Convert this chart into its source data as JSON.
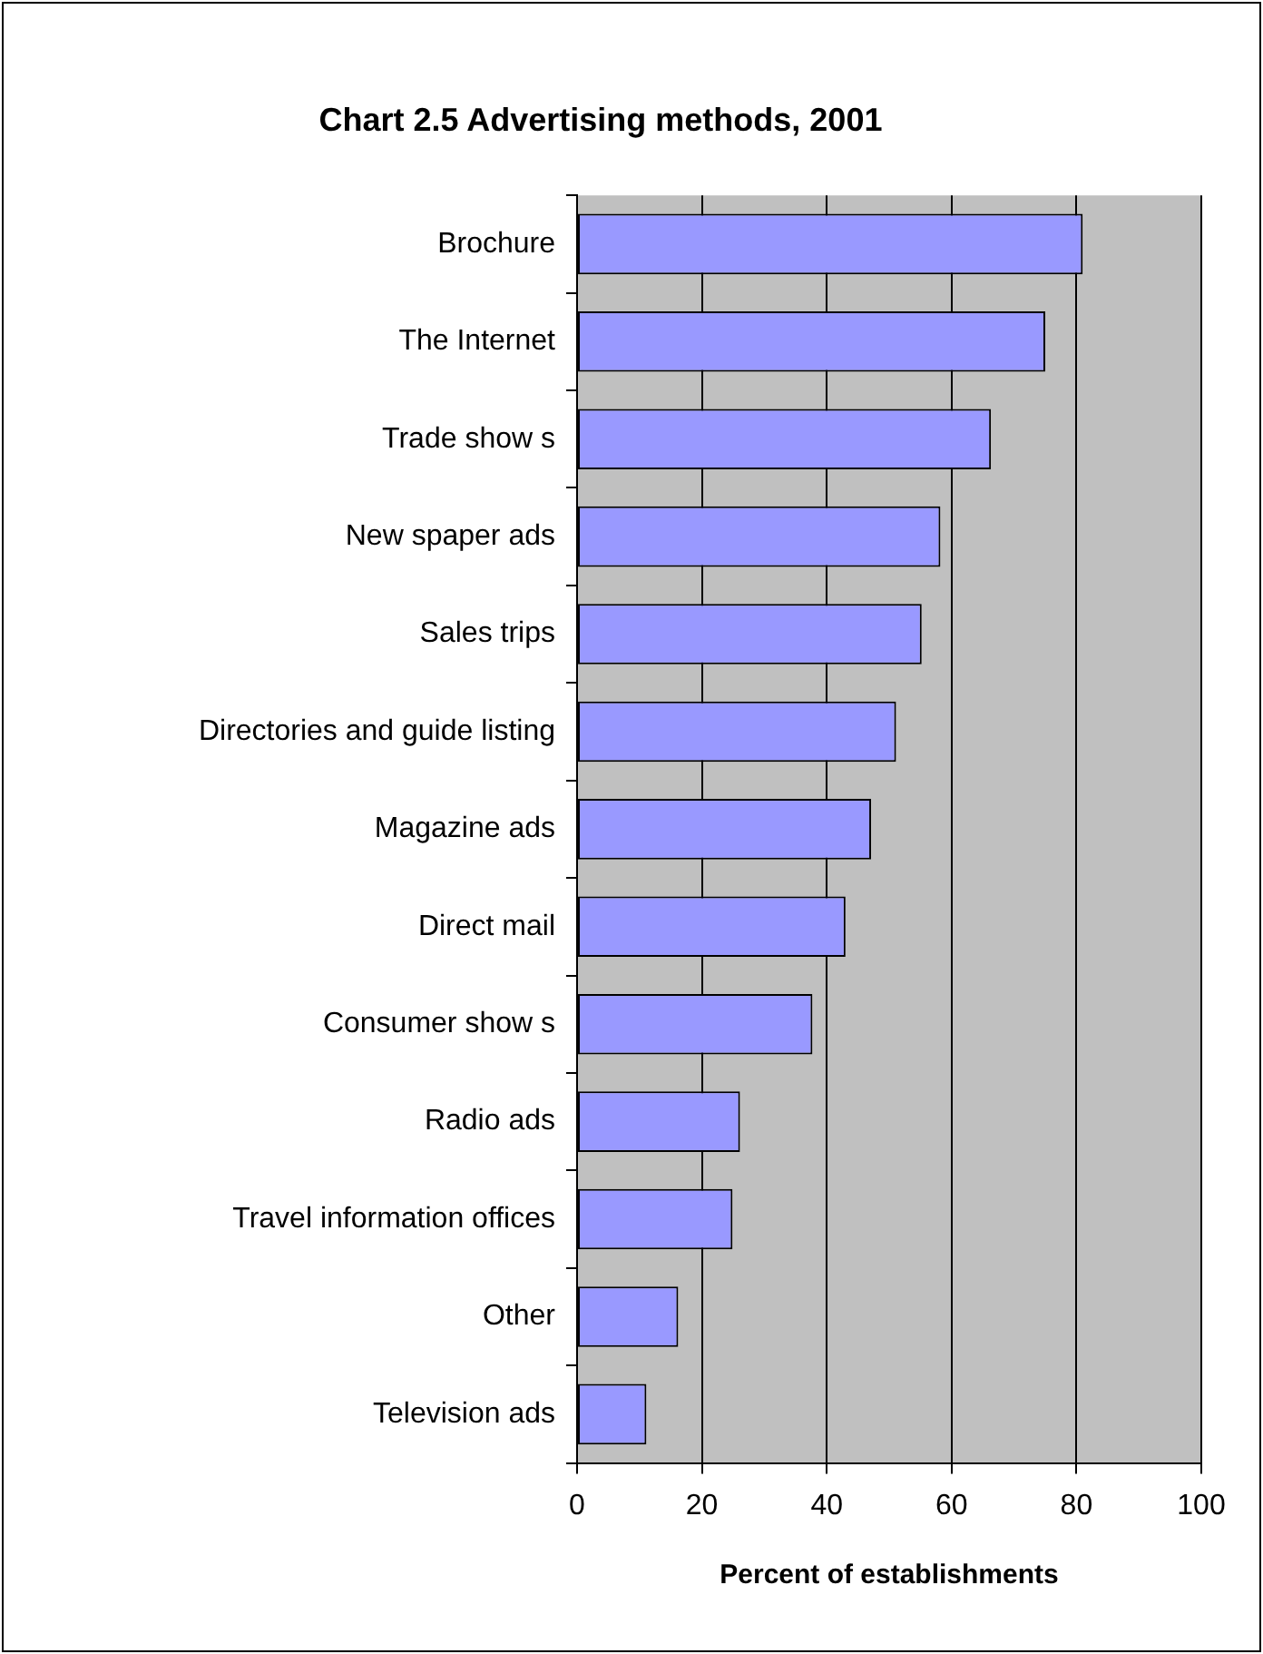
{
  "chart_data": {
    "type": "bar",
    "orientation": "horizontal",
    "title": "Chart 2.5 Advertising methods, 2001",
    "xlabel": "Percent of establishments",
    "categories": [
      "Brochure",
      "The Internet",
      "Trade show s",
      "New spaper ads",
      "Sales trips",
      "Directories and guide listing",
      "Magazine ads",
      "Direct mail",
      "Consumer show s",
      "Radio ads",
      "Travel information offices",
      "Other",
      "Television ads"
    ],
    "values": [
      81,
      75.0,
      66.3,
      58.2,
      55.2,
      51.1,
      47.1,
      43.0,
      37.7,
      26.1,
      24.9,
      16.2,
      11.1
    ],
    "color": "#9999ff",
    "xlim": [
      0,
      100
    ],
    "xticks": [
      0,
      20,
      40,
      60,
      80,
      100
    ],
    "grid": "x",
    "legend": false
  }
}
